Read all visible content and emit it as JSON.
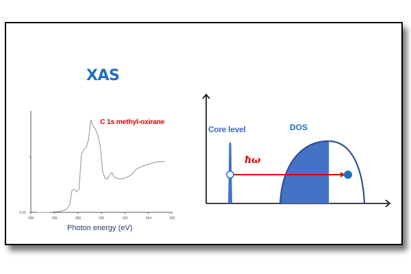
{
  "slide": {
    "title": "XAS",
    "xas_plot": {
      "series_label": "C 1s methyl-oxirane",
      "xlabel": "Photon energy (eV)",
      "y_tick_label": "0.00",
      "x_ticks": [
        "284",
        "286",
        "288",
        "290",
        "292",
        "294",
        "296"
      ]
    },
    "schematic": {
      "core_level_label": "Core level",
      "dos_label": "DOS",
      "photon_label": "ħω"
    }
  },
  "colors": {
    "title": "#1f6fc1",
    "series_label": "#e00000",
    "spectrum_line": "#9a9a9a",
    "dos_fill": "#4472c4",
    "dos_outline": "#2f4f8f",
    "arrow": "#e00000",
    "electron": "#1f6fc1"
  },
  "chart_data": {
    "type": "line",
    "title": "C 1s methyl-oxirane",
    "xlabel": "Photon energy (eV)",
    "ylabel": "",
    "xlim": [
      284,
      296
    ],
    "ylim": [
      0,
      1
    ],
    "x_ticks": [
      284,
      286,
      288,
      290,
      292,
      294,
      296
    ],
    "y_ticks": [
      0.0
    ],
    "grid": false,
    "series": [
      {
        "name": "C 1s methyl-oxirane",
        "x": [
          284.5,
          285.5,
          286.5,
          287.0,
          287.3,
          287.5,
          287.7,
          287.9,
          288.1,
          288.3,
          288.5,
          288.7,
          288.9,
          289.1,
          289.3,
          289.5,
          289.7,
          289.9,
          290.1,
          290.3,
          290.5,
          290.7,
          290.9,
          291.1,
          291.3,
          291.6,
          292.0,
          292.5,
          293.0,
          293.5,
          294.0,
          294.5,
          295.0,
          295.4
        ],
        "values": [
          0.0,
          0.0,
          0.01,
          0.03,
          0.08,
          0.24,
          0.25,
          0.22,
          0.25,
          0.62,
          0.68,
          0.7,
          0.78,
          1.0,
          0.93,
          0.9,
          0.83,
          0.72,
          0.45,
          0.37,
          0.36,
          0.4,
          0.43,
          0.38,
          0.37,
          0.36,
          0.37,
          0.4,
          0.47,
          0.5,
          0.52,
          0.54,
          0.55,
          0.55
        ]
      }
    ]
  }
}
